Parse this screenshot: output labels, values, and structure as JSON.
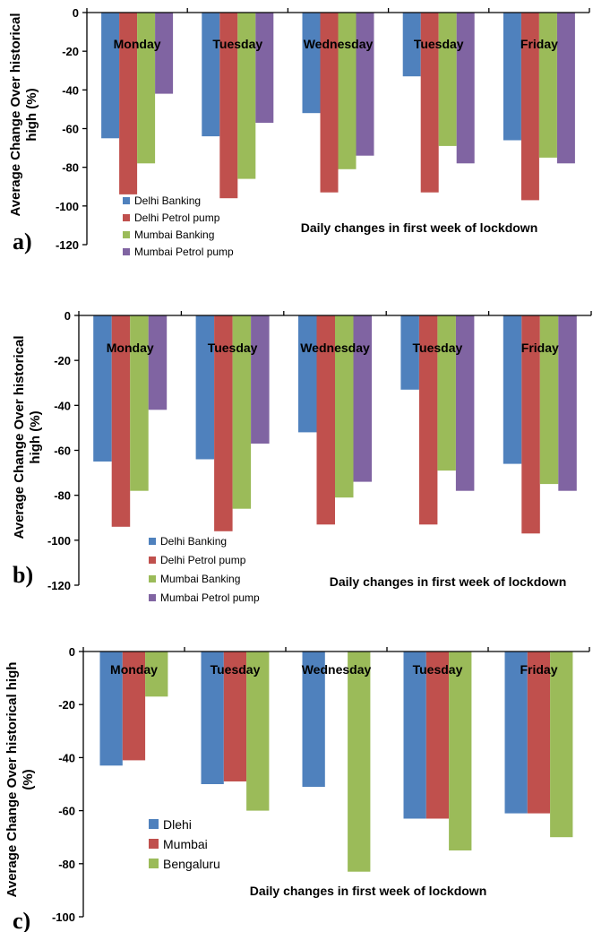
{
  "chart_data": [
    {
      "panel_label": "a)",
      "type": "bar",
      "categories": [
        "Monday",
        "Tuesday",
        "Wednesday",
        "Tuesday",
        "Friday"
      ],
      "series": [
        {
          "name": "Delhi Banking",
          "color": "#4f81bd",
          "values": [
            -65,
            -64,
            -52,
            -33,
            -66
          ]
        },
        {
          "name": "Delhi Petrol pump",
          "color": "#c0504d",
          "values": [
            -94,
            -96,
            -93,
            -93,
            -97
          ]
        },
        {
          "name": "Mumbai Banking",
          "color": "#9bbb59",
          "values": [
            -78,
            -86,
            -81,
            -69,
            -75
          ]
        },
        {
          "name": "Mumbai Petrol pump",
          "color": "#8064a2",
          "values": [
            -42,
            -57,
            -74,
            -78,
            -78
          ]
        }
      ],
      "ylabel_lines": [
        "Average Change Over historical",
        "high (%)"
      ],
      "xlabel": "Daily changes in first week of lockdown",
      "ylim": [
        -120,
        0
      ],
      "yticks": [
        0,
        -20,
        -40,
        -60,
        -80,
        -100,
        -120
      ],
      "legend_position": "bottom-left",
      "grid": false
    },
    {
      "panel_label": "b)",
      "type": "bar",
      "categories": [
        "Monday",
        "Tuesday",
        "Wednesday",
        "Tuesday",
        "Friday"
      ],
      "series": [
        {
          "name": "Delhi Banking",
          "color": "#4f81bd",
          "values": [
            -65,
            -64,
            -52,
            -33,
            -66
          ]
        },
        {
          "name": "Delhi Petrol pump",
          "color": "#c0504d",
          "values": [
            -94,
            -96,
            -93,
            -93,
            -97
          ]
        },
        {
          "name": "Mumbai Banking",
          "color": "#9bbb59",
          "values": [
            -78,
            -86,
            -81,
            -69,
            -75
          ]
        },
        {
          "name": "Mumbai Petrol pump",
          "color": "#8064a2",
          "values": [
            -42,
            -57,
            -74,
            -78,
            -78
          ]
        }
      ],
      "ylabel_lines": [
        "Average Change Over historical",
        "high (%)"
      ],
      "xlabel": "Daily changes in first week of lockdown",
      "ylim": [
        -120,
        0
      ],
      "yticks": [
        0,
        -20,
        -40,
        -60,
        -80,
        -100,
        -120
      ],
      "legend_position": "bottom-left",
      "grid": false
    },
    {
      "panel_label": "c)",
      "type": "bar",
      "categories": [
        "Monday",
        "Tuesday",
        "Wednesday",
        "Tuesday",
        "Friday"
      ],
      "series": [
        {
          "name": "Dlehi",
          "color": "#4f81bd",
          "values": [
            -43,
            -50,
            -51,
            -63,
            -61
          ]
        },
        {
          "name": "Mumbai",
          "color": "#c0504d",
          "values": [
            -41,
            -49,
            0,
            -63,
            -61
          ]
        },
        {
          "name": "Bengaluru",
          "color": "#9bbb59",
          "values": [
            -17,
            -60,
            -83,
            -75,
            -70
          ]
        }
      ],
      "ylabel_lines": [
        "Average Change Over historical high",
        "(%)"
      ],
      "xlabel": "Daily changes in first week of lockdown",
      "ylim": [
        -100,
        0
      ],
      "yticks": [
        0,
        -20,
        -40,
        -60,
        -80,
        -100
      ],
      "legend_position": "bottom-left",
      "grid": false
    }
  ]
}
